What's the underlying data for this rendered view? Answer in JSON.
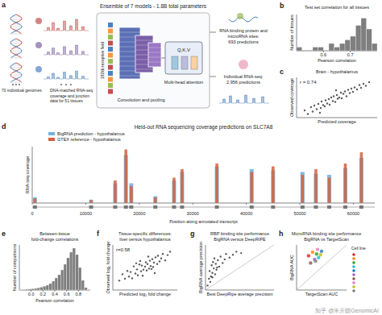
{
  "diagram": {
    "panel": "a",
    "title": "Ensemble of 7 models - 1.8B total parameters",
    "inputs": {
      "genomes": "70 individual genomes",
      "rnaseq": [
        "DNA-matched RNA-seq",
        "coverage and junction",
        "data for 51 tissues"
      ]
    },
    "model": {
      "receptive_field": "192kb receptive field",
      "conv": "Convolution and pooling",
      "attention_qkv": "Q,K,V",
      "attention": "Multi-head attention"
    },
    "outputs": {
      "binding_sites": [
        "RNA binding protein and",
        "microRNA sites:",
        "693 predictions"
      ],
      "rnaseq": [
        "Individual RNA-seq:",
        "2,956 predictions"
      ]
    }
  },
  "chart_data": [
    {
      "panel": "b",
      "type": "histogram",
      "title": [
        "Test set correlation for all tissues"
      ],
      "x_label": "Pearson correlation",
      "y_label": "Number of tissues",
      "bins": [
        0.5,
        0.52,
        0.54,
        0.56,
        0.58,
        0.6,
        0.62,
        0.64,
        0.66,
        0.68,
        0.7,
        0.72,
        0.74,
        0.76,
        0.78,
        0.8
      ],
      "values": [
        1,
        0,
        0,
        1,
        1,
        0,
        2,
        1,
        2,
        3,
        4,
        7,
        9,
        6,
        2
      ],
      "color": "#7f7f7f",
      "xlim": [
        0.5,
        0.8
      ],
      "ylim": [
        0,
        10
      ],
      "xticks": [
        0.6,
        0.7
      ],
      "tick_labels": "x"
    },
    {
      "panel": "c",
      "type": "scatter",
      "title": [
        "Brain - hypothalamus"
      ],
      "annotation": "r = 0.74",
      "x_label": "Predicted coverage",
      "y_label": "Observed coverage",
      "x": [
        1.0,
        1.4,
        1.8,
        2.0,
        2.2,
        2.5,
        2.7,
        3.0,
        3.1,
        3.3,
        3.5,
        3.6,
        3.8,
        4.0,
        4.1,
        4.3,
        4.5,
        4.6,
        4.8,
        5.0,
        5.1,
        5.3,
        5.5,
        5.6,
        5.8,
        6.0,
        6.2,
        6.4,
        6.6,
        6.8,
        7.0,
        7.2,
        7.5,
        7.8,
        8.0,
        8.3,
        8.6,
        9.0,
        2.9,
        4.9
      ],
      "values": [
        1.8,
        0.9,
        2.6,
        1.5,
        3.0,
        2.1,
        3.4,
        2.4,
        4.0,
        3.1,
        2.8,
        4.3,
        3.5,
        4.6,
        3.2,
        5.0,
        4.1,
        5.3,
        3.9,
        5.6,
        4.7,
        5.0,
        6.2,
        4.8,
        5.9,
        6.5,
        5.3,
        6.9,
        6.1,
        7.2,
        6.4,
        7.5,
        7.0,
        8.1,
        7.4,
        8.4,
        7.9,
        8.8,
        1.2,
        6.8
      ],
      "color": "#333333",
      "xlim": [
        0,
        10
      ],
      "ylim": [
        0,
        10
      ],
      "tick_labels": false
    },
    {
      "panel": "d",
      "type": "bar",
      "title": [
        "Held-out RNA sequencing coverage predictions on SLC7A8"
      ],
      "x_label": "Position along annotated transcript",
      "y_label": "RNA-seq coverage",
      "x": [
        500,
        11000,
        15500,
        17500,
        18500,
        23000,
        26500,
        28000,
        34500,
        41000,
        45000,
        50500,
        53000,
        55500,
        58500,
        61500
      ],
      "series": [
        {
          "name": "BigRNA prediction - hypothalamus",
          "color": "#74b3db",
          "values": [
            10,
            6,
            35,
            85,
            35,
            12,
            40,
            55,
            65,
            60,
            58,
            55,
            52,
            50,
            62,
            80
          ]
        },
        {
          "name": "GTEX reference - hypothalamus",
          "color": "#d4603f",
          "values": [
            8,
            5,
            40,
            95,
            30,
            10,
            45,
            60,
            70,
            55,
            65,
            50,
            60,
            45,
            70,
            90
          ]
        }
      ],
      "xlim": [
        0,
        64000
      ],
      "ylim": [
        0,
        100
      ],
      "xticks": [
        0,
        10000,
        20000,
        30000,
        40000,
        50000,
        60000
      ],
      "tick_labels": "x",
      "legend": "top-left"
    },
    {
      "panel": "e",
      "type": "histogram",
      "title": [
        "Between-tissue",
        "fold-change correlations"
      ],
      "x_label": "Pearson correlation",
      "y_label": "Number of comparisons",
      "bins": [
        -0.2,
        -0.15,
        -0.1,
        -0.05,
        0,
        0.05,
        0.1,
        0.15,
        0.2,
        0.25,
        0.3,
        0.35,
        0.4,
        0.45,
        0.5,
        0.55,
        0.6,
        0.65,
        0.7,
        0.75,
        0.8,
        0.85,
        0.9,
        0.95,
        1.0
      ],
      "values": [
        2,
        3,
        5,
        6,
        8,
        10,
        14,
        18,
        24,
        30,
        40,
        55,
        75,
        95,
        125,
        160,
        200,
        235,
        260,
        220,
        140,
        60,
        15,
        3
      ],
      "color": "#7f7f7f",
      "xlim": [
        -0.2,
        1.0
      ],
      "ylim": [
        0,
        280
      ],
      "xticks": [
        {
          "value": 0,
          "label": "0.0"
        },
        0.2,
        0.4,
        0.6,
        0.8
      ],
      "tick_labels": "x"
    },
    {
      "panel": "f",
      "type": "scatter",
      "title": [
        "Tissue-specific differences:",
        "liver versus hypothalamus"
      ],
      "annotation": "r=0.58",
      "x_label": "Predicted log₂ fold change",
      "y_label": "Observed log₂ fold change",
      "x": [
        -3.2,
        -2.8,
        -2.5,
        -2.2,
        -2.0,
        -1.8,
        -1.6,
        -1.4,
        -1.2,
        -1.0,
        -0.9,
        -0.7,
        -0.5,
        -0.4,
        -0.2,
        0,
        0.1,
        0.2,
        0.3,
        0.5,
        0.6,
        0.7,
        0.9,
        1.0,
        1.1,
        1.3,
        1.5,
        1.6,
        1.8,
        2.0,
        2.2,
        2.5,
        2.8,
        3.1,
        -0.3,
        0.4,
        -1.1,
        1.2,
        0.8,
        -0.6
      ],
      "values": [
        -3.5,
        -1.8,
        -3.0,
        -0.9,
        -2.4,
        -1.2,
        -2.9,
        0.3,
        -1.6,
        -0.5,
        -2.1,
        0.8,
        -1.0,
        0.5,
        -0.6,
        0.2,
        1.4,
        -0.8,
        0.9,
        -0.3,
        1.8,
        0.4,
        2.2,
        0.1,
        1.3,
        2.7,
        0.9,
        3.1,
        1.6,
        2.4,
        3.6,
        1.9,
        3.3,
        4.2,
        -2.2,
        2.9,
        1.1,
        -1.5,
        -0.4,
        1.7
      ],
      "color": "#333333",
      "xlim": [
        -4,
        4
      ],
      "ylim": [
        -6,
        6
      ],
      "tick_labels": false
    },
    {
      "panel": "g",
      "type": "scatter",
      "title": [
        "RBP binding site performance",
        "BigRNA versus DeepRIPE"
      ],
      "x_label": "Best DeepRipe average precision",
      "y_label": "BigRNA average precision",
      "x": [
        0.03,
        0.05,
        0.06,
        0.08,
        0.09,
        0.1,
        0.11,
        0.12,
        0.13,
        0.14,
        0.15,
        0.16,
        0.18,
        0.2,
        0.22,
        0.25,
        0.28,
        0.3,
        0.35,
        0.4,
        0.45,
        0.52,
        0.07,
        0.1,
        0.17
      ],
      "values": [
        0.1,
        0.25,
        0.42,
        0.3,
        0.55,
        0.38,
        0.62,
        0.48,
        0.7,
        0.35,
        0.58,
        0.45,
        0.66,
        0.52,
        0.74,
        0.6,
        0.68,
        0.8,
        0.72,
        0.78,
        0.85,
        0.82,
        0.18,
        0.28,
        0.5
      ],
      "color": "#333333",
      "xlim": [
        0,
        1
      ],
      "ylim": [
        0,
        1
      ],
      "tick_labels": false
    },
    {
      "panel": "h",
      "type": "scatter",
      "title": [
        "MicroRNA binding site performance",
        "BigRNA vs TargetScan"
      ],
      "x_label": "TargetScan AUC",
      "y_label": "BigRNA AUC",
      "legend_title": "Cell line",
      "legend": "right",
      "x": [
        0.62,
        0.66,
        0.7,
        0.72,
        0.75,
        0.68,
        0.64,
        0.71,
        0.74,
        0.69
      ],
      "values": [
        0.88,
        0.92,
        0.9,
        0.86,
        0.93,
        0.84,
        0.8,
        0.95,
        0.89,
        0.82
      ],
      "colors": [
        "#d62728",
        "#ff7f0e",
        "#2ca02c",
        "#17becf",
        "#1f77b4",
        "#9467bd",
        "#8c564b",
        "#e377c2",
        "#bcbd22",
        "#7f7f7f"
      ],
      "xlim": [
        0.5,
        1.0
      ],
      "ylim": [
        0.5,
        1.0
      ],
      "tick_labels": false
    }
  ],
  "watermark": "知乎 @米开朗GenomicAI"
}
